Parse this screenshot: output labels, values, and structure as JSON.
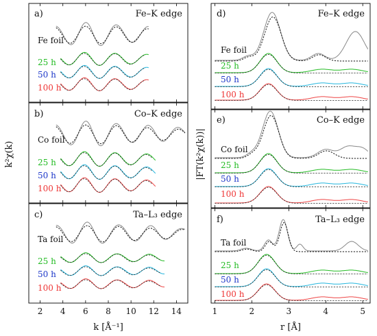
{
  "chart_data": [
    {
      "type": "line",
      "panel": "a)",
      "edge": "Fe–K edge",
      "ref": "Fe foil",
      "xlim": [
        1,
        15
      ],
      "series": [
        "25 h",
        "50 h",
        "100 h"
      ],
      "colors": {
        "ref": "#444444",
        "25 h": "#22bb22",
        "50 h": "#22b5dd",
        "100 h": "#ee4444"
      }
    },
    {
      "type": "line",
      "panel": "b)",
      "edge": "Co–K edge",
      "ref": "Co foil",
      "xlim": [
        1,
        15
      ],
      "series": [
        "25 h",
        "50 h",
        "100 h"
      ]
    },
    {
      "type": "line",
      "panel": "c)",
      "edge": "Ta–L₃ edge",
      "ref": "Ta foil",
      "xlim": [
        1,
        15
      ],
      "series": [
        "25 h",
        "50 h",
        "100 h"
      ],
      "xticks": [
        2,
        4,
        6,
        8,
        10,
        12,
        14
      ],
      "xlabel": "k [Å⁻¹]"
    },
    {
      "type": "line",
      "panel": "d)",
      "edge": "Fe–K edge",
      "ref": "Fe foil",
      "xlim": [
        0.9,
        5.2
      ],
      "series": [
        "25 h",
        "50 h",
        "100 h"
      ]
    },
    {
      "type": "line",
      "panel": "e)",
      "edge": "Co–K edge",
      "ref": "Co foil",
      "xlim": [
        0.9,
        5.2
      ],
      "series": [
        "25 h",
        "50 h",
        "100 h"
      ]
    },
    {
      "type": "line",
      "panel": "f)",
      "edge": "Ta–L₃ edge",
      "ref": "Ta foil",
      "xlim": [
        0.9,
        5.2
      ],
      "series": [
        "25 h",
        "50 h",
        "100 h"
      ],
      "xticks": [
        1,
        2,
        3,
        4,
        5
      ],
      "xlabel": "r [Å]"
    }
  ],
  "ylabel_left": "k²χ(k)",
  "ylabel_right": "|FT(k²χ(k))|"
}
